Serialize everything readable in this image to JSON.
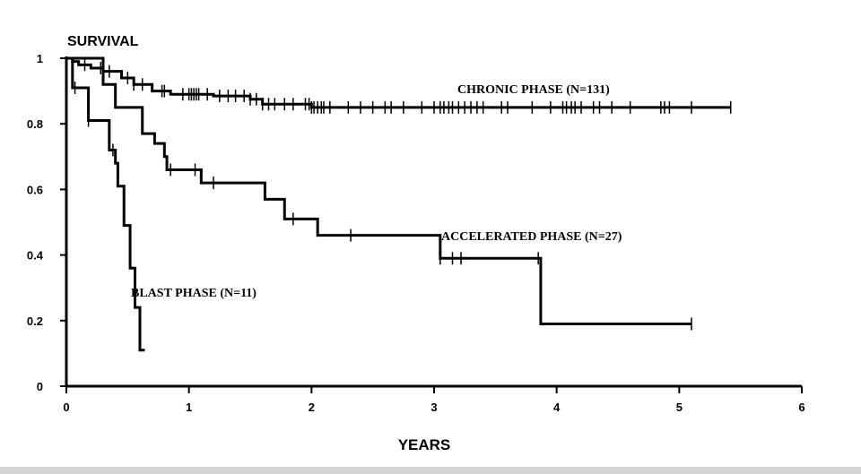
{
  "chart_data": {
    "type": "line",
    "subtype": "kaplan-meier",
    "ylabel": "SURVIVAL",
    "xlabel": "YEARS",
    "xlim": [
      0,
      6
    ],
    "ylim": [
      0,
      1
    ],
    "x_ticks": [
      "0",
      "1",
      "2",
      "3",
      "4",
      "5",
      "6"
    ],
    "y_ticks": [
      "0",
      "0.2",
      "0.4",
      "0.6",
      "0.8",
      "1"
    ],
    "grid": false,
    "series": [
      {
        "name": "CHRONIC PHASE (N=131)",
        "steps": [
          [
            0,
            1
          ],
          [
            0.05,
            0.99
          ],
          [
            0.1,
            0.98
          ],
          [
            0.2,
            0.97
          ],
          [
            0.3,
            0.96
          ],
          [
            0.45,
            0.94
          ],
          [
            0.55,
            0.92
          ],
          [
            0.7,
            0.9
          ],
          [
            0.85,
            0.89
          ],
          [
            1.2,
            0.885
          ],
          [
            1.5,
            0.875
          ],
          [
            1.6,
            0.86
          ],
          [
            2.0,
            0.85
          ],
          [
            5.42,
            0.85
          ]
        ],
        "censored_x": [
          0.15,
          0.28,
          0.35,
          0.5,
          0.55,
          0.62,
          0.78,
          0.8,
          0.95,
          1.0,
          1.02,
          1.04,
          1.06,
          1.08,
          1.15,
          1.25,
          1.32,
          1.38,
          1.45,
          1.5,
          1.55,
          1.6,
          1.65,
          1.7,
          1.78,
          1.85,
          1.95,
          1.98,
          2.0,
          2.02,
          2.05,
          2.08,
          2.1,
          2.15,
          2.3,
          2.4,
          2.5,
          2.6,
          2.65,
          2.75,
          2.9,
          3.0,
          3.05,
          3.08,
          3.12,
          3.15,
          3.2,
          3.25,
          3.3,
          3.35,
          3.4,
          3.55,
          3.6,
          3.8,
          3.95,
          4.05,
          4.08,
          4.12,
          4.15,
          4.2,
          4.3,
          4.35,
          4.45,
          4.6,
          4.85,
          4.88,
          4.92,
          5.1,
          5.42
        ]
      },
      {
        "name": "ACCELERATED PHASE (N=27)",
        "steps": [
          [
            0,
            1
          ],
          [
            0.3,
            0.96
          ],
          [
            0.3,
            0.92
          ],
          [
            0.4,
            0.85
          ],
          [
            0.6,
            0.85
          ],
          [
            0.62,
            0.77
          ],
          [
            0.72,
            0.74
          ],
          [
            0.8,
            0.7
          ],
          [
            0.82,
            0.66
          ],
          [
            1.1,
            0.62
          ],
          [
            1.62,
            0.57
          ],
          [
            1.78,
            0.51
          ],
          [
            2.05,
            0.46
          ],
          [
            3.05,
            0.39
          ],
          [
            3.87,
            0.19
          ],
          [
            5.1,
            0.19
          ]
        ],
        "censored_x": [
          0.85,
          1.05,
          1.2,
          1.85,
          2.32,
          3.05,
          3.15,
          3.22,
          3.85,
          5.1
        ]
      },
      {
        "name": "BLAST PHASE (N=11)",
        "steps": [
          [
            0,
            1
          ],
          [
            0.05,
            0.91
          ],
          [
            0.18,
            0.81
          ],
          [
            0.35,
            0.72
          ],
          [
            0.4,
            0.68
          ],
          [
            0.42,
            0.61
          ],
          [
            0.47,
            0.49
          ],
          [
            0.52,
            0.36
          ],
          [
            0.56,
            0.24
          ],
          [
            0.6,
            0.11
          ],
          [
            0.64,
            0.11
          ]
        ],
        "censored_x": [
          0.07,
          0.18,
          0.38
        ]
      }
    ]
  }
}
